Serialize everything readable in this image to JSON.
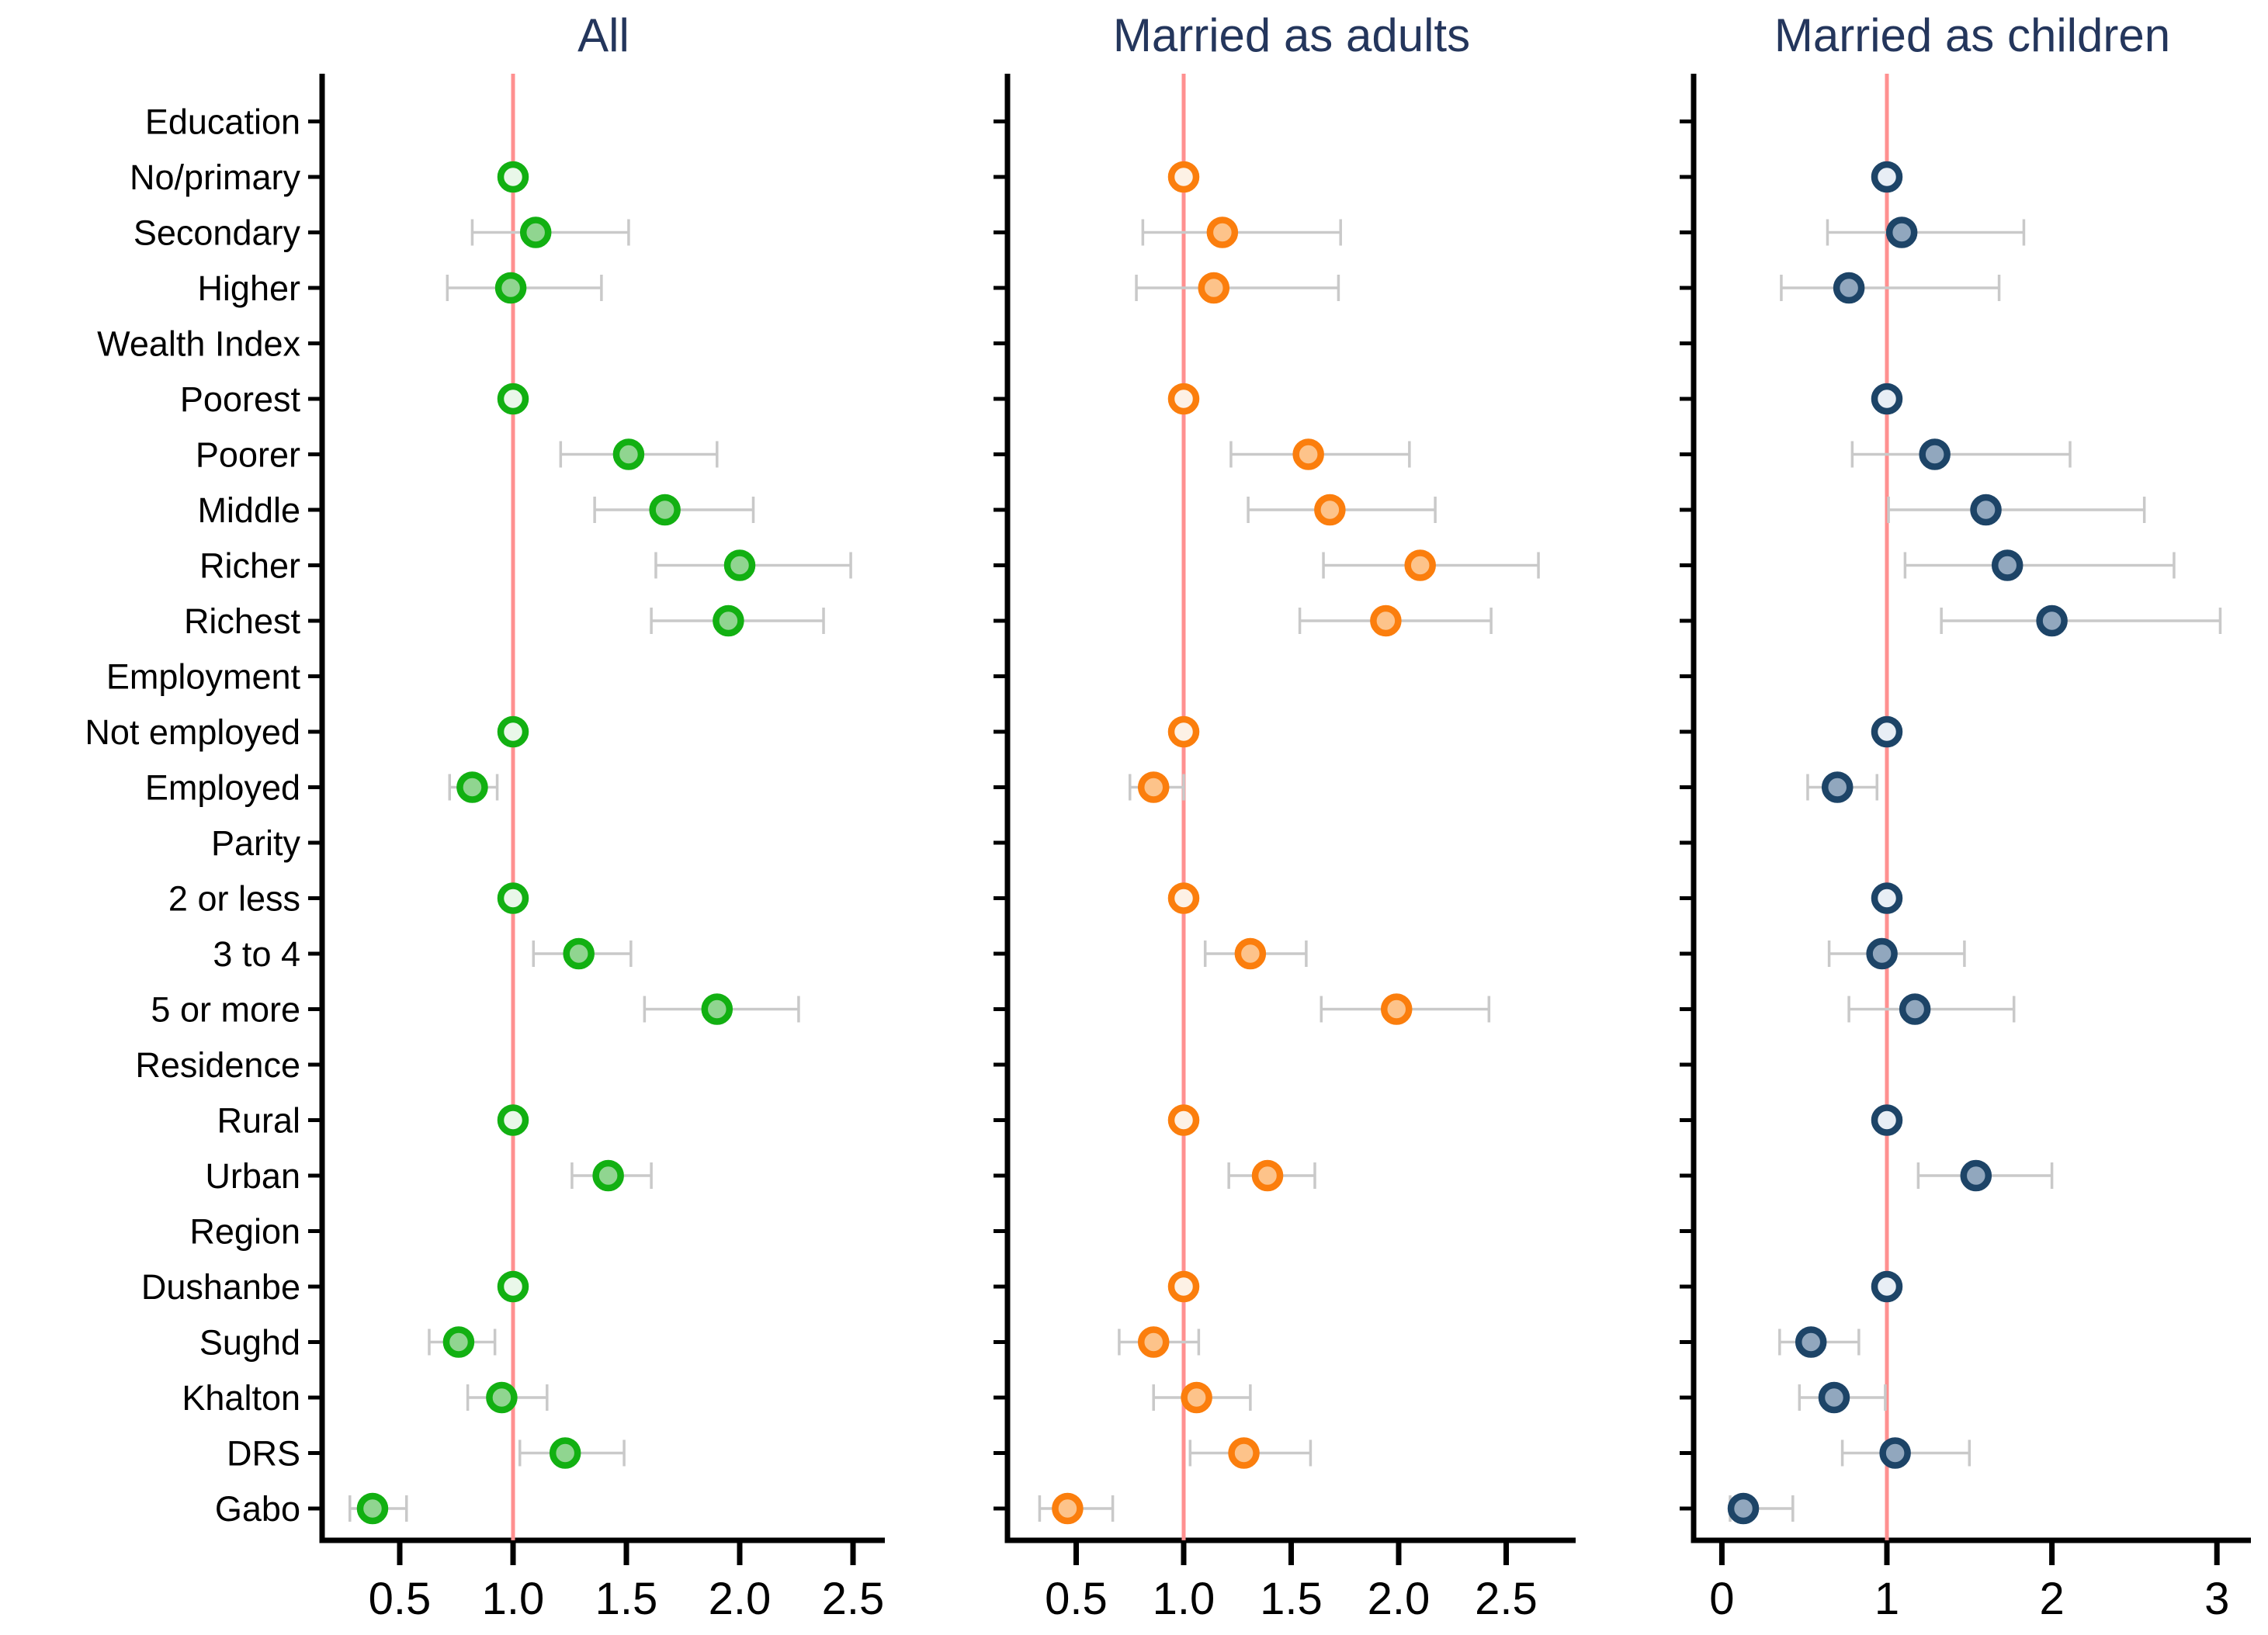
{
  "chart_data": {
    "type": "forest",
    "reference_line_value": 1,
    "reference_line_color": "#ff9090",
    "ci_color": "#c9c9c9",
    "title_color": "#24365c",
    "categories": [
      "Education",
      "No/primary",
      "Secondary",
      "Higher",
      "Wealth Index",
      "Poorest",
      "Poorer",
      "Middle",
      "Richer",
      "Richest",
      "Employment",
      "Not employed",
      "Employed",
      "Parity",
      "2 or less",
      "3 to 4",
      "5 or more",
      "Residence",
      "Rural",
      "Urban",
      "Region",
      "Dushanbe",
      "Sughd",
      "Khalton",
      "DRS",
      "Gabo"
    ],
    "header_rows": [
      "Education",
      "Wealth Index",
      "Employment",
      "Parity",
      "Residence",
      "Region"
    ],
    "panels": [
      {
        "title": "All",
        "color_ring": "#12b012",
        "color_fill": "#90d590",
        "color_ref_fill": "#e9f7e9",
        "tick_values": [
          0.5,
          1.0,
          1.5,
          2.0,
          2.5
        ],
        "tick_labels": [
          "0.5",
          "1.0",
          "1.5",
          "2.0",
          "2.5"
        ],
        "rows": [
          null,
          {
            "ref": true,
            "est": 1.0
          },
          {
            "est": 1.1,
            "lo": 0.82,
            "hi": 1.51
          },
          {
            "est": 0.99,
            "lo": 0.71,
            "hi": 1.39
          },
          null,
          {
            "ref": true,
            "est": 1.0
          },
          {
            "est": 1.51,
            "lo": 1.21,
            "hi": 1.9
          },
          {
            "est": 1.67,
            "lo": 1.36,
            "hi": 2.06
          },
          {
            "est": 2.0,
            "lo": 1.63,
            "hi": 2.49
          },
          {
            "est": 1.95,
            "lo": 1.61,
            "hi": 2.37
          },
          null,
          {
            "ref": true,
            "est": 1.0
          },
          {
            "est": 0.82,
            "lo": 0.72,
            "hi": 0.93
          },
          null,
          {
            "ref": true,
            "est": 1.0
          },
          {
            "est": 1.29,
            "lo": 1.09,
            "hi": 1.52
          },
          {
            "est": 1.9,
            "lo": 1.58,
            "hi": 2.26
          },
          null,
          {
            "ref": true,
            "est": 1.0
          },
          {
            "est": 1.42,
            "lo": 1.26,
            "hi": 1.61
          },
          null,
          {
            "ref": true,
            "est": 1.0
          },
          {
            "est": 0.76,
            "lo": 0.63,
            "hi": 0.92
          },
          {
            "est": 0.95,
            "lo": 0.8,
            "hi": 1.15
          },
          {
            "est": 1.23,
            "lo": 1.03,
            "hi": 1.49
          },
          {
            "est": 0.38,
            "lo": 0.28,
            "hi": 0.53
          }
        ]
      },
      {
        "title": "Married as adults",
        "color_ring": "#fb7e0d",
        "color_fill": "#fdc38a",
        "color_ref_fill": "#fdf1e5",
        "tick_values": [
          0.5,
          1.0,
          1.5,
          2.0,
          2.5
        ],
        "tick_labels": [
          "0.5",
          "1.0",
          "1.5",
          "2.0",
          "2.5"
        ],
        "rows": [
          null,
          {
            "ref": true,
            "est": 1.0
          },
          {
            "est": 1.18,
            "lo": 0.81,
            "hi": 1.73
          },
          {
            "est": 1.14,
            "lo": 0.78,
            "hi": 1.72
          },
          null,
          {
            "ref": true,
            "est": 1.0
          },
          {
            "est": 1.58,
            "lo": 1.22,
            "hi": 2.05
          },
          {
            "est": 1.68,
            "lo": 1.3,
            "hi": 2.17
          },
          {
            "est": 2.1,
            "lo": 1.65,
            "hi": 2.65
          },
          {
            "est": 1.94,
            "lo": 1.54,
            "hi": 2.43
          },
          null,
          {
            "ref": true,
            "est": 1.0
          },
          {
            "est": 0.86,
            "lo": 0.75,
            "hi": 1.0
          },
          null,
          {
            "ref": true,
            "est": 1.0
          },
          {
            "est": 1.31,
            "lo": 1.1,
            "hi": 1.57
          },
          {
            "est": 1.99,
            "lo": 1.64,
            "hi": 2.42
          },
          null,
          {
            "ref": true,
            "est": 1.0
          },
          {
            "est": 1.39,
            "lo": 1.21,
            "hi": 1.61
          },
          null,
          {
            "ref": true,
            "est": 1.0
          },
          {
            "est": 0.86,
            "lo": 0.7,
            "hi": 1.07
          },
          {
            "est": 1.06,
            "lo": 0.86,
            "hi": 1.31
          },
          {
            "est": 1.28,
            "lo": 1.03,
            "hi": 1.59
          },
          {
            "est": 0.46,
            "lo": 0.33,
            "hi": 0.67
          }
        ]
      },
      {
        "title": "Married as children",
        "color_ring": "#1d4467",
        "color_fill": "#91a7be",
        "color_ref_fill": "#e8eef5",
        "tick_values": [
          0,
          1,
          2,
          3
        ],
        "tick_labels": [
          "0",
          "1",
          "2",
          "3"
        ],
        "rows": [
          null,
          {
            "ref": true,
            "est": 1.0
          },
          {
            "est": 1.09,
            "lo": 0.64,
            "hi": 1.83
          },
          {
            "est": 0.77,
            "lo": 0.36,
            "hi": 1.68
          },
          null,
          {
            "ref": true,
            "est": 1.0
          },
          {
            "est": 1.29,
            "lo": 0.79,
            "hi": 2.11
          },
          {
            "est": 1.6,
            "lo": 1.01,
            "hi": 2.56
          },
          {
            "est": 1.73,
            "lo": 1.11,
            "hi": 2.74
          },
          {
            "est": 2.0,
            "lo": 1.33,
            "hi": 3.02
          },
          null,
          {
            "ref": true,
            "est": 1.0
          },
          {
            "est": 0.7,
            "lo": 0.52,
            "hi": 0.94
          },
          null,
          {
            "ref": true,
            "est": 1.0
          },
          {
            "est": 0.97,
            "lo": 0.65,
            "hi": 1.47
          },
          {
            "est": 1.17,
            "lo": 0.77,
            "hi": 1.77
          },
          null,
          {
            "ref": true,
            "est": 1.0
          },
          {
            "est": 1.54,
            "lo": 1.19,
            "hi": 2.0
          },
          null,
          {
            "ref": true,
            "est": 1.0
          },
          {
            "est": 0.54,
            "lo": 0.35,
            "hi": 0.83
          },
          {
            "est": 0.68,
            "lo": 0.47,
            "hi": 0.99
          },
          {
            "est": 1.05,
            "lo": 0.73,
            "hi": 1.5
          },
          {
            "est": 0.13,
            "lo": 0.05,
            "hi": 0.43
          }
        ]
      }
    ]
  }
}
